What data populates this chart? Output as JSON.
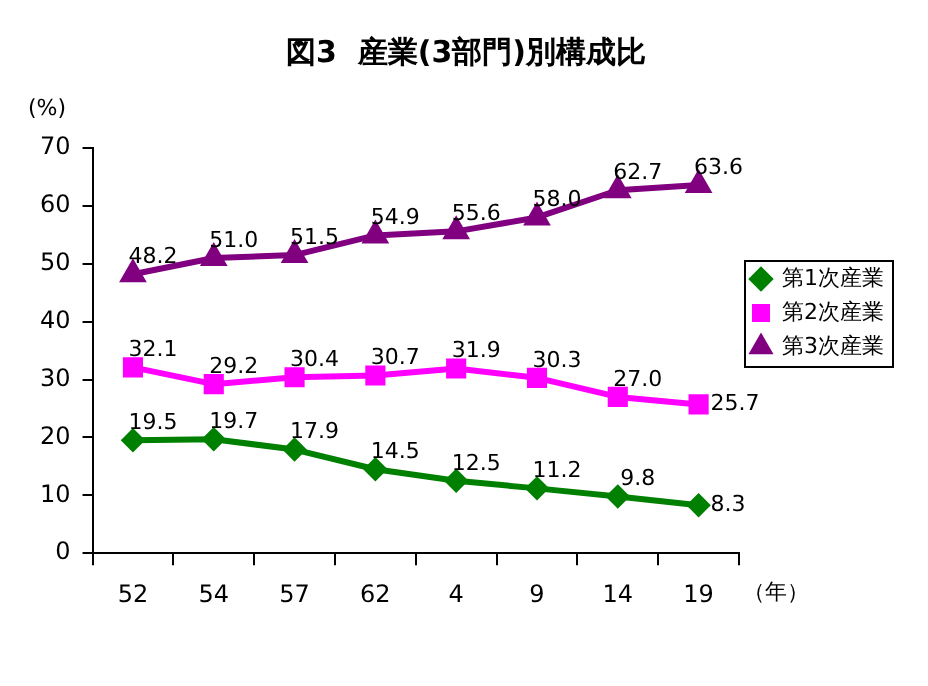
{
  "chart_data": {
    "type": "line",
    "title": "図3  産業(3部門)別構成比",
    "ylabel": "(%)",
    "xlabel": "（年）",
    "categories": [
      "52",
      "54",
      "57",
      "62",
      "4",
      "9",
      "14",
      "19"
    ],
    "series": [
      {
        "name": "第1次産業",
        "color": "#008000",
        "marker": "diamond",
        "values": [
          19.5,
          19.7,
          17.9,
          14.5,
          12.5,
          11.2,
          9.8,
          8.3
        ],
        "value_labels": [
          "19.5",
          "19.7",
          "17.9",
          "14.5",
          "12.5",
          "11.2",
          "9.8",
          "8.3"
        ]
      },
      {
        "name": "第2次産業",
        "color": "#ff00ff",
        "marker": "square",
        "values": [
          32.1,
          29.2,
          30.4,
          30.7,
          31.9,
          30.3,
          27.0,
          25.7
        ],
        "value_labels": [
          "32.1",
          "29.2",
          "30.4",
          "30.7",
          "31.9",
          "30.3",
          "27.0",
          "25.7"
        ]
      },
      {
        "name": "第3次産業",
        "color": "#800080",
        "marker": "triangle",
        "values": [
          48.2,
          51.0,
          51.5,
          54.9,
          55.6,
          58.0,
          62.7,
          63.6
        ],
        "value_labels": [
          "48.2",
          "51.0",
          "51.5",
          "54.9",
          "55.6",
          "58.0",
          "62.7",
          "63.6"
        ]
      }
    ],
    "ylim": [
      0,
      70
    ],
    "yticks": [
      0,
      10,
      20,
      30,
      40,
      50,
      60,
      70
    ],
    "grid": false,
    "legend": "right"
  }
}
